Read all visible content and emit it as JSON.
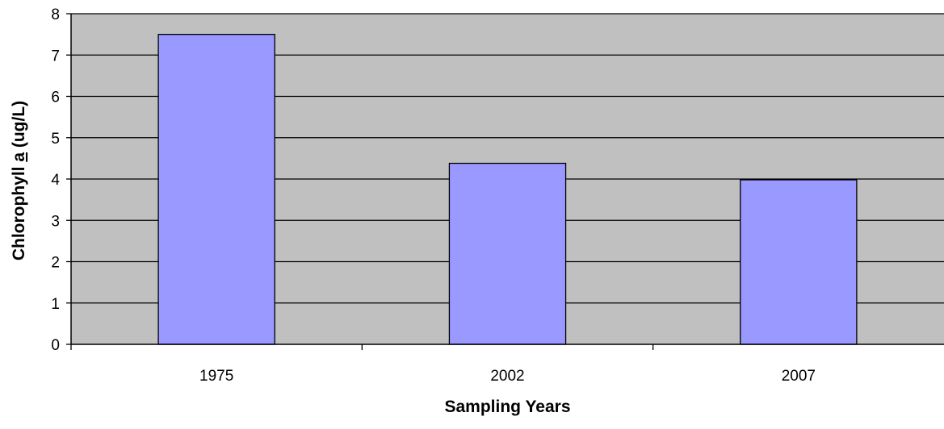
{
  "chart_data": {
    "type": "bar",
    "categories": [
      "1975",
      "2002",
      "2007"
    ],
    "values": [
      7.5,
      4.38,
      3.98
    ],
    "xlabel": "Sampling Years",
    "ylabel": {
      "before": "Chlorophyll ",
      "underlined": "a",
      "after": " (ug/L)"
    },
    "ylim": [
      0,
      8
    ],
    "yticks": [
      "0",
      "1",
      "2",
      "3",
      "4",
      "5",
      "6",
      "7",
      "8"
    ],
    "grid": true,
    "legend": "none",
    "colors": {
      "plot_background": "#c0c0c0",
      "bar_fill": "#9999ff",
      "bar_stroke": "#000000",
      "grid": "#000000"
    }
  }
}
